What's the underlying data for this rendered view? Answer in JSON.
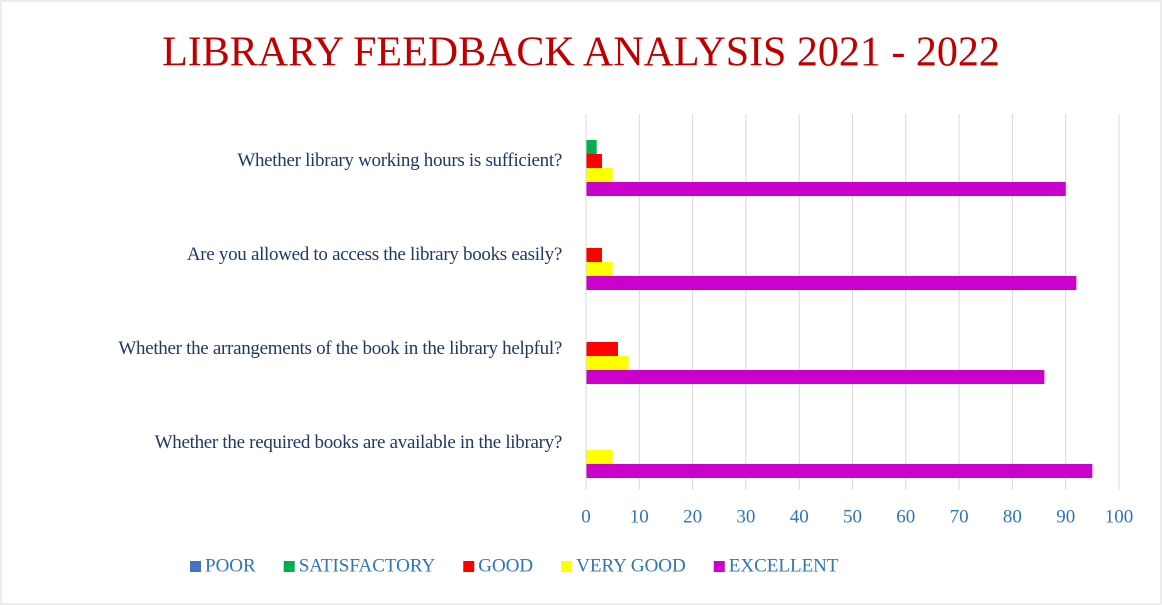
{
  "chart_data": {
    "type": "hbar",
    "title": "LIBRARY FEEDBACK ANALYSIS 2021 - 2022",
    "categories": [
      "Whether library working hours is sufficient?",
      "Are you allowed to access the library books easily?",
      "Whether the arrangements of the book in the library helpful?",
      "Whether the required books are available in the library?"
    ],
    "series": [
      {
        "name": "POOR",
        "color": "#4472c4",
        "values": [
          0,
          0,
          0,
          0
        ]
      },
      {
        "name": "SATISFACTORY",
        "color": "#00b050",
        "values": [
          2,
          0,
          0,
          0
        ]
      },
      {
        "name": "GOOD",
        "color": "#ff0000",
        "values": [
          3,
          3,
          6,
          0
        ]
      },
      {
        "name": "VERY GOOD",
        "color": "#ffff00",
        "values": [
          5,
          5,
          8,
          5
        ]
      },
      {
        "name": "EXCELLENT",
        "color": "#cc00cc",
        "values": [
          90,
          92,
          86,
          95
        ]
      }
    ],
    "xlim": [
      0,
      100
    ],
    "xticks": [
      0,
      10,
      20,
      30,
      40,
      50,
      60,
      70,
      80,
      90,
      100
    ],
    "grid": true,
    "legend": "bottom"
  }
}
